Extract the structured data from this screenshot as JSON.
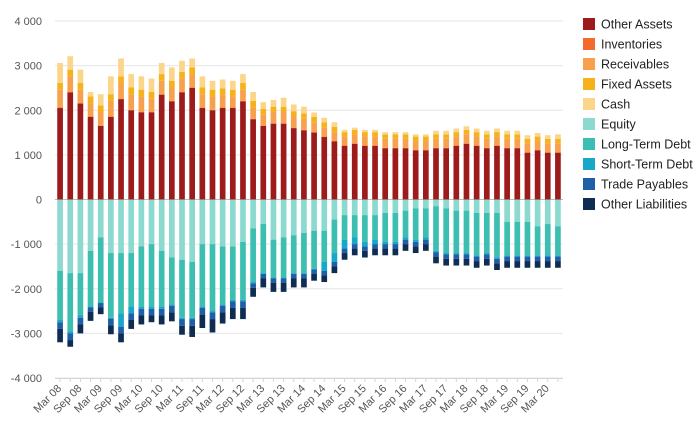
{
  "chart_data": {
    "type": "bar",
    "stacked": true,
    "title": "",
    "xlabel": "",
    "ylabel": "",
    "ylim": [
      -4000,
      4000
    ],
    "y_ticks": [
      4000,
      3000,
      2000,
      1000,
      0,
      -1000,
      -2000,
      -3000,
      -4000
    ],
    "y_tick_labels": [
      "4 000",
      "3 000",
      "2 000",
      "1 000",
      "0",
      "-1 000",
      "-2 000",
      "-3 000",
      "-4 000"
    ],
    "grid": "horizontal",
    "legend_position": "right",
    "x_tick_labels": [
      "Mar 08",
      "Sep 08",
      "Mar 09",
      "Sep 09",
      "Mar 10",
      "Sep 10",
      "Mar 11",
      "Sep 11",
      "Mar 12",
      "Sep 12",
      "Mar 13",
      "Sep 13",
      "Mar 14",
      "Sep 14",
      "Mar 15",
      "Sep 15",
      "Mar 16",
      "Sep 16",
      "Mar 17",
      "Sep 17",
      "Mar 18",
      "Sep 18",
      "Mar 19",
      "Sep 19",
      "Mar 20"
    ],
    "categories": [
      "Mar 08",
      "Jun 08",
      "Sep 08",
      "Dec 08",
      "Mar 09",
      "Jun 09",
      "Sep 09",
      "Dec 09",
      "Mar 10",
      "Jun 10",
      "Sep 10",
      "Dec 10",
      "Mar 11",
      "Jun 11",
      "Sep 11",
      "Dec 11",
      "Mar 12",
      "Jun 12",
      "Sep 12",
      "Dec 12",
      "Mar 13",
      "Jun 13",
      "Sep 13",
      "Dec 13",
      "Mar 14",
      "Jun 14",
      "Sep 14",
      "Dec 14",
      "Mar 15",
      "Jun 15",
      "Sep 15",
      "Dec 15",
      "Mar 16",
      "Jun 16",
      "Sep 16",
      "Dec 16",
      "Mar 17",
      "Jun 17",
      "Sep 17",
      "Dec 17",
      "Mar 18",
      "Jun 18",
      "Sep 18",
      "Dec 18",
      "Mar 19",
      "Jun 19",
      "Sep 19",
      "Dec 19",
      "Mar 20",
      "Jun 20"
    ],
    "series": [
      {
        "name": "Other Assets",
        "color": "#9e1b1b",
        "values": [
          2050,
          2400,
          2150,
          1850,
          1650,
          1850,
          2250,
          2000,
          1950,
          1950,
          2350,
          2200,
          2400,
          2500,
          2050,
          2000,
          2050,
          2050,
          2200,
          1800,
          1650,
          1700,
          1700,
          1600,
          1550,
          1500,
          1400,
          1300,
          1200,
          1250,
          1200,
          1200,
          1150,
          1150,
          1150,
          1100,
          1100,
          1150,
          1150,
          1200,
          1250,
          1200,
          1150,
          1200,
          1150,
          1150,
          1050,
          1100,
          1050,
          1050
        ]
      },
      {
        "name": "Inventories",
        "color": "#f26a2c",
        "values": [
          10,
          10,
          10,
          10,
          10,
          10,
          10,
          10,
          10,
          10,
          10,
          10,
          10,
          10,
          10,
          10,
          10,
          10,
          10,
          10,
          10,
          10,
          10,
          10,
          10,
          10,
          10,
          10,
          10,
          10,
          10,
          10,
          10,
          10,
          10,
          10,
          10,
          10,
          10,
          10,
          10,
          10,
          10,
          10,
          10,
          10,
          10,
          10,
          10,
          10
        ]
      },
      {
        "name": "Receivables",
        "color": "#f7a14d",
        "values": [
          400,
          350,
          300,
          300,
          300,
          350,
          350,
          350,
          350,
          300,
          300,
          300,
          300,
          300,
          300,
          300,
          280,
          250,
          250,
          250,
          250,
          250,
          250,
          250,
          250,
          220,
          200,
          200,
          200,
          200,
          200,
          200,
          200,
          200,
          200,
          200,
          200,
          200,
          200,
          200,
          200,
          200,
          200,
          200,
          200,
          200,
          200,
          200,
          200,
          200
        ]
      },
      {
        "name": "Fixed Assets",
        "color": "#f5b21b",
        "values": [
          150,
          150,
          150,
          150,
          150,
          150,
          150,
          150,
          150,
          150,
          150,
          150,
          150,
          150,
          150,
          150,
          150,
          150,
          150,
          150,
          120,
          120,
          120,
          120,
          120,
          120,
          120,
          120,
          100,
          100,
          100,
          100,
          100,
          100,
          100,
          100,
          100,
          100,
          100,
          100,
          100,
          100,
          100,
          100,
          100,
          100,
          100,
          100,
          100,
          100
        ]
      },
      {
        "name": "Cash",
        "color": "#fbd58a",
        "values": [
          450,
          300,
          300,
          100,
          250,
          400,
          400,
          300,
          300,
          300,
          250,
          300,
          250,
          200,
          250,
          200,
          200,
          200,
          200,
          200,
          150,
          150,
          200,
          150,
          150,
          100,
          100,
          100,
          50,
          50,
          50,
          50,
          50,
          50,
          50,
          50,
          50,
          80,
          80,
          80,
          80,
          80,
          80,
          80,
          80,
          80,
          80,
          80,
          80,
          100
        ]
      },
      {
        "name": "Equity",
        "color": "#8cd9d0",
        "values": [
          -1600,
          -1650,
          -1650,
          -1150,
          -850,
          -1200,
          -1200,
          -1200,
          -1050,
          -1000,
          -1150,
          -1300,
          -1350,
          -1400,
          -1000,
          -1000,
          -1050,
          -1050,
          -950,
          -650,
          -550,
          -900,
          -850,
          -800,
          -750,
          -700,
          -700,
          -450,
          -350,
          -350,
          -350,
          -350,
          -300,
          -300,
          -250,
          -200,
          -200,
          -150,
          -200,
          -250,
          -250,
          -300,
          -300,
          -300,
          -500,
          -500,
          -500,
          -600,
          -550,
          -600
        ]
      },
      {
        "name": "Long-Term Debt",
        "color": "#3cbfb0",
        "values": [
          -1100,
          -1300,
          -950,
          -1250,
          -1450,
          -1450,
          -1350,
          -1200,
          -1350,
          -1400,
          -1250,
          -1050,
          -1300,
          -1250,
          -1400,
          -1500,
          -1300,
          -1200,
          -1300,
          -1200,
          -1100,
          -850,
          -900,
          -850,
          -900,
          -850,
          -700,
          -750,
          -550,
          -500,
          -600,
          -550,
          -650,
          -650,
          -600,
          -700,
          -650,
          -1000,
          -1000,
          -950,
          -950,
          -950,
          -900,
          -1000,
          -750,
          -750,
          -750,
          -650,
          -700,
          -650
        ]
      },
      {
        "name": "Short-Term Debt",
        "color": "#16a7c9",
        "values": [
          -50,
          -50,
          -50,
          -20,
          -20,
          -20,
          -300,
          -150,
          -50,
          -50,
          -50,
          -30,
          -30,
          -30,
          -30,
          -30,
          -30,
          -30,
          -30,
          -30,
          -20,
          -20,
          -20,
          -20,
          -20,
          -20,
          -200,
          -200,
          -200,
          -150,
          -100,
          -100,
          -50,
          -50,
          -50,
          -50,
          -50,
          -30,
          -30,
          -30,
          -30,
          -30,
          -30,
          -30,
          -30,
          -30,
          -30,
          -30,
          -30,
          -30
        ]
      },
      {
        "name": "Trade Payables",
        "color": "#1f5fa8",
        "values": [
          -150,
          -150,
          -150,
          -100,
          -100,
          -150,
          -150,
          -150,
          -150,
          -150,
          -150,
          -150,
          -150,
          -150,
          -150,
          -150,
          -150,
          -150,
          -150,
          -100,
          -100,
          -100,
          -100,
          -100,
          -100,
          -100,
          -100,
          -100,
          -100,
          -100,
          -100,
          -100,
          -100,
          -100,
          -100,
          -100,
          -100,
          -100,
          -100,
          -100,
          -100,
          -100,
          -100,
          -100,
          -100,
          -100,
          -100,
          -100,
          -100,
          -100
        ]
      },
      {
        "name": "Other Liabilities",
        "color": "#0f2d52",
        "values": [
          -300,
          -150,
          -200,
          -200,
          -150,
          -200,
          -200,
          -200,
          -200,
          -150,
          -200,
          -200,
          -200,
          -250,
          -300,
          -300,
          -250,
          -250,
          -250,
          -200,
          -200,
          -200,
          -200,
          -200,
          -200,
          -150,
          -150,
          -150,
          -150,
          -150,
          -150,
          -150,
          -150,
          -150,
          -150,
          -150,
          -150,
          -150,
          -150,
          -150,
          -150,
          -150,
          -150,
          -150,
          -150,
          -150,
          -150,
          -150,
          -150,
          -150
        ]
      }
    ]
  }
}
